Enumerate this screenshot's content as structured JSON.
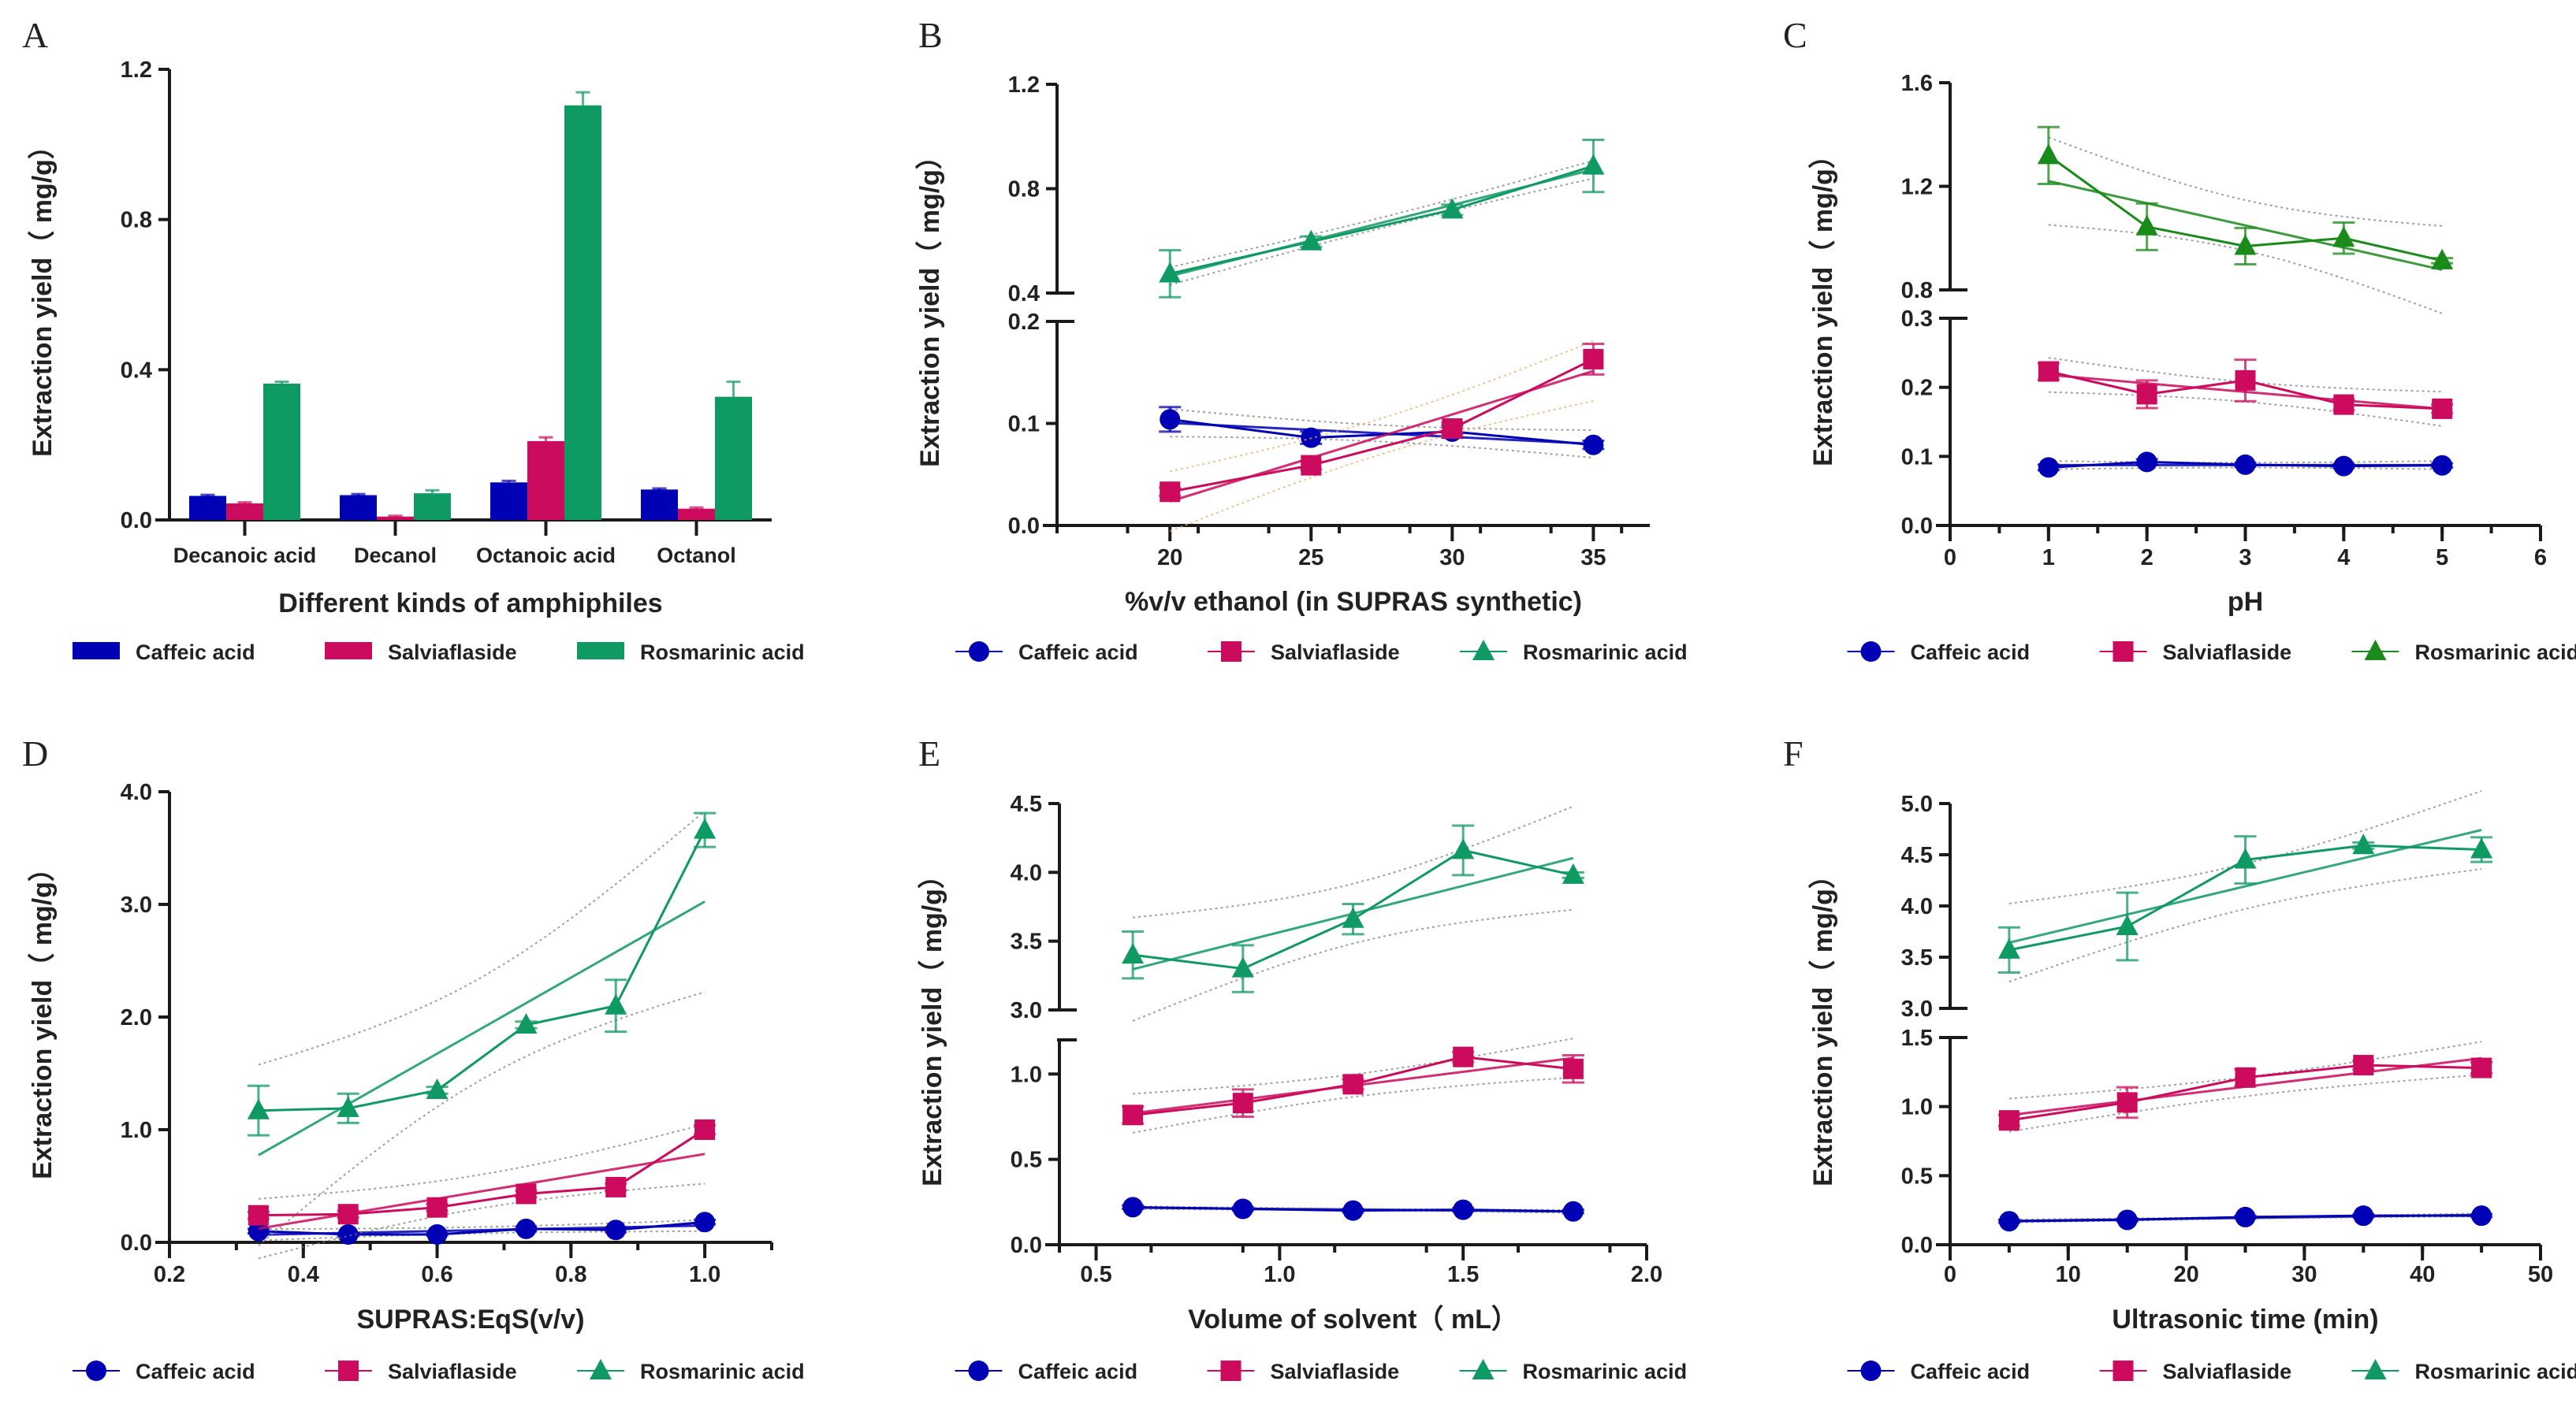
{
  "figure": {
    "legend_labels": [
      "Caffeic acid",
      "Salviaflaside",
      "Rosmarinic acid"
    ],
    "colors": {
      "caffeic": "#0000B4",
      "salviaflaside": "#CC0A5E",
      "rosmarinic": "#0E9A62",
      "rosmarinic_ph": "#1A8A1A",
      "axis": "#1a1a1a"
    }
  },
  "chart_data": [
    {
      "id": "A",
      "panel_label": "A",
      "type": "bar",
      "title": "",
      "xlabel": "Different kinds of amphiphiles",
      "ylabel": "Extraction yield（ mg/g）",
      "categories": [
        "Decanoic acid",
        "Decanol",
        "Octanoic acid",
        "Octanol"
      ],
      "ylim": [
        0,
        1.2
      ],
      "yticks": [
        0.0,
        0.4,
        0.8,
        1.2
      ],
      "ytick_labels": [
        "0.0",
        "0.4",
        "0.8",
        "1.2"
      ],
      "legend": "bottom",
      "series": [
        {
          "name": "Caffeic acid",
          "values": [
            0.064,
            0.066,
            0.1,
            0.081
          ],
          "errors": [
            0.003,
            0.003,
            0.004,
            0.003
          ]
        },
        {
          "name": "Salviaflaside",
          "values": [
            0.044,
            0.009,
            0.21,
            0.03
          ],
          "errors": [
            0.003,
            0.002,
            0.01,
            0.003
          ]
        },
        {
          "name": "Rosmarinic acid",
          "values": [
            0.363,
            0.071,
            1.104,
            0.328
          ],
          "errors": [
            0.005,
            0.008,
            0.035,
            0.04
          ]
        }
      ]
    },
    {
      "id": "B",
      "panel_label": "B",
      "type": "line",
      "xlabel": "%v/v ethanol (in SUPRAS synthetic)",
      "ylabel": "Extraction yield（ mg/g）",
      "x": [
        20,
        25,
        30,
        35
      ],
      "xlim": [
        16,
        37
      ],
      "xticks": [
        20,
        25,
        30,
        35
      ],
      "xtick_labels": [
        "20",
        "25",
        "30",
        "35"
      ],
      "broken_axis": {
        "lower": {
          "ylim": [
            0,
            0.2
          ],
          "yticks": [
            0.0,
            0.1,
            0.2
          ],
          "ytick_labels": [
            "0.0",
            "0.1",
            "0.2"
          ]
        },
        "upper": {
          "ylim": [
            0.3,
            1.2
          ],
          "yticks": [
            0.4,
            0.8,
            1.2
          ],
          "ytick_labels": [
            "0.4",
            "0.8",
            "1.2"
          ]
        }
      },
      "trendlines": true,
      "legend": "bottom",
      "series": [
        {
          "name": "Caffeic acid",
          "axis": "lower",
          "values": [
            0.104,
            0.086,
            0.092,
            0.079
          ],
          "errors": [
            0.012,
            0.006,
            0.006,
            0.004
          ]
        },
        {
          "name": "Salviaflaside",
          "axis": "lower",
          "values": [
            0.033,
            0.059,
            0.095,
            0.163
          ],
          "errors": [
            0.004,
            0.004,
            0.006,
            0.015
          ]
        },
        {
          "name": "Rosmarinic acid",
          "axis": "upper",
          "values": [
            0.474,
            0.597,
            0.719,
            0.887
          ],
          "errors": [
            0.09,
            0.02,
            0.02,
            0.1
          ]
        }
      ]
    },
    {
      "id": "C",
      "panel_label": "C",
      "type": "line",
      "xlabel": "pH",
      "ylabel": "Extraction yield（ mg/g）",
      "x": [
        1,
        2,
        3,
        4,
        5
      ],
      "xlim": [
        0,
        6
      ],
      "xticks": [
        0,
        1,
        2,
        3,
        4,
        5,
        6
      ],
      "xtick_labels": [
        "0",
        "1",
        "2",
        "3",
        "4",
        "5",
        "6"
      ],
      "broken_axis": {
        "lower": {
          "ylim": [
            0,
            0.3
          ],
          "yticks": [
            0.0,
            0.1,
            0.2,
            0.3
          ],
          "ytick_labels": [
            "0.0",
            "0.1",
            "0.2",
            "0.3"
          ]
        },
        "upper": {
          "ylim": [
            0.8,
            1.6
          ],
          "yticks": [
            0.8,
            1.2,
            1.6
          ],
          "ytick_labels": [
            "0.8",
            "1.2",
            "1.6"
          ]
        }
      },
      "trendlines": true,
      "legend": "bottom",
      "series": [
        {
          "name": "Caffeic acid",
          "axis": "lower",
          "values": [
            0.084,
            0.092,
            0.088,
            0.086,
            0.087
          ],
          "errors": [
            0.004,
            0.004,
            0.003,
            0.003,
            0.003
          ]
        },
        {
          "name": "Salviaflaside",
          "axis": "lower",
          "values": [
            0.223,
            0.19,
            0.21,
            0.175,
            0.169
          ],
          "errors": [
            0.012,
            0.02,
            0.03,
            0.008,
            0.006
          ]
        },
        {
          "name": "Rosmarinic acid",
          "axis": "upper",
          "values": [
            1.319,
            1.044,
            0.969,
            1.0,
            0.913
          ],
          "errors": [
            0.11,
            0.09,
            0.07,
            0.06,
            0.01
          ]
        }
      ]
    },
    {
      "id": "D",
      "panel_label": "D",
      "type": "line",
      "xlabel": "SUPRAS:EqS(v/v)",
      "ylabel": "Extraction yield（ mg/g）",
      "x": [
        0.333,
        0.467,
        0.6,
        0.733,
        0.867,
        1.0
      ],
      "xlim": [
        0.2,
        1.1
      ],
      "xticks": [
        0.2,
        0.4,
        0.6,
        0.8,
        1.0
      ],
      "xtick_labels": [
        "0.2",
        "0.4",
        "0.6",
        "0.8",
        "1.0"
      ],
      "ylim": [
        0,
        4.0
      ],
      "yticks": [
        0.0,
        1.0,
        2.0,
        3.0,
        4.0
      ],
      "ytick_labels": [
        "0.0",
        "1.0",
        "2.0",
        "3.0",
        "4.0"
      ],
      "trendlines": true,
      "legend": "bottom",
      "series": [
        {
          "name": "Caffeic acid",
          "values": [
            0.1,
            0.07,
            0.07,
            0.12,
            0.11,
            0.18
          ],
          "errors": [
            0.02,
            0.01,
            0.01,
            0.02,
            0.02,
            0.02
          ]
        },
        {
          "name": "Salviaflaside",
          "values": [
            0.24,
            0.25,
            0.31,
            0.43,
            0.49,
            1.0
          ],
          "errors": [
            0.03,
            0.03,
            0.03,
            0.03,
            0.03,
            0.04
          ]
        },
        {
          "name": "Rosmarinic acid",
          "values": [
            1.17,
            1.19,
            1.35,
            1.93,
            2.1,
            3.66
          ],
          "errors": [
            0.22,
            0.13,
            0.03,
            0.03,
            0.23,
            0.15
          ]
        }
      ]
    },
    {
      "id": "E",
      "panel_label": "E",
      "type": "line",
      "xlabel": "Volume of solvent（ mL）",
      "ylabel": "Extraction yield（ mg/g）",
      "x": [
        0.6,
        0.9,
        1.2,
        1.5,
        1.8
      ],
      "xlim": [
        0.4,
        2.0
      ],
      "xticks": [
        0.5,
        1.0,
        1.5,
        2.0
      ],
      "xtick_labels": [
        "0.5",
        "1.0",
        "1.5",
        "2.0"
      ],
      "broken_axis": {
        "lower": {
          "ylim": [
            0,
            1.2
          ],
          "yticks": [
            0.0,
            0.5,
            1.0
          ],
          "ytick_labels": [
            "0.0",
            "0.5",
            "1.0"
          ]
        },
        "upper": {
          "ylim": [
            3.0,
            4.5
          ],
          "yticks": [
            3.0,
            3.5,
            4.0,
            4.5
          ],
          "ytick_labels": [
            "3.0",
            "3.5",
            "4.0",
            "4.5"
          ]
        }
      },
      "trendlines": true,
      "legend": "bottom",
      "series": [
        {
          "name": "Caffeic acid",
          "axis": "lower",
          "values": [
            0.22,
            0.21,
            0.2,
            0.205,
            0.195
          ],
          "errors": [
            0.01,
            0.01,
            0.01,
            0.01,
            0.01
          ]
        },
        {
          "name": "Salviaflaside",
          "axis": "lower",
          "values": [
            0.76,
            0.83,
            0.94,
            1.1,
            1.03
          ],
          "errors": [
            0.05,
            0.08,
            0.03,
            0.03,
            0.08
          ]
        },
        {
          "name": "Rosmarinic acid",
          "axis": "upper",
          "values": [
            3.4,
            3.3,
            3.66,
            4.16,
            3.98
          ],
          "errors": [
            0.17,
            0.17,
            0.11,
            0.18,
            0.02
          ]
        }
      ]
    },
    {
      "id": "F",
      "panel_label": "F",
      "type": "line",
      "xlabel": "Ultrasonic time (min)",
      "ylabel": "Extraction yield（ mg/g）",
      "x": [
        5,
        15,
        25,
        35,
        45
      ],
      "xlim": [
        0,
        50
      ],
      "xticks": [
        0,
        10,
        20,
        30,
        40,
        50
      ],
      "xtick_labels": [
        "0",
        "10",
        "20",
        "30",
        "40",
        "50"
      ],
      "broken_axis": {
        "lower": {
          "ylim": [
            0,
            1.5
          ],
          "yticks": [
            0.0,
            0.5,
            1.0,
            1.5
          ],
          "ytick_labels": [
            "0.0",
            "0.5",
            "1.0",
            "1.5"
          ]
        },
        "upper": {
          "ylim": [
            3.0,
            5.0
          ],
          "yticks": [
            3.0,
            3.5,
            4.0,
            4.5,
            5.0
          ],
          "ytick_labels": [
            "3.0",
            "3.5",
            "4.0",
            "4.5",
            "5.0"
          ]
        }
      },
      "trendlines": true,
      "legend": "bottom",
      "series": [
        {
          "name": "Caffeic acid",
          "axis": "lower",
          "values": [
            0.17,
            0.18,
            0.2,
            0.21,
            0.21
          ],
          "errors": [
            0.01,
            0.01,
            0.01,
            0.01,
            0.01
          ]
        },
        {
          "name": "Salviaflaside",
          "axis": "lower",
          "values": [
            0.9,
            1.03,
            1.21,
            1.3,
            1.28
          ],
          "errors": [
            0.04,
            0.11,
            0.06,
            0.03,
            0.04
          ]
        },
        {
          "name": "Rosmarinic acid",
          "axis": "upper",
          "values": [
            3.57,
            3.8,
            4.45,
            4.59,
            4.55
          ],
          "errors": [
            0.22,
            0.33,
            0.23,
            0.03,
            0.12
          ]
        }
      ]
    }
  ]
}
